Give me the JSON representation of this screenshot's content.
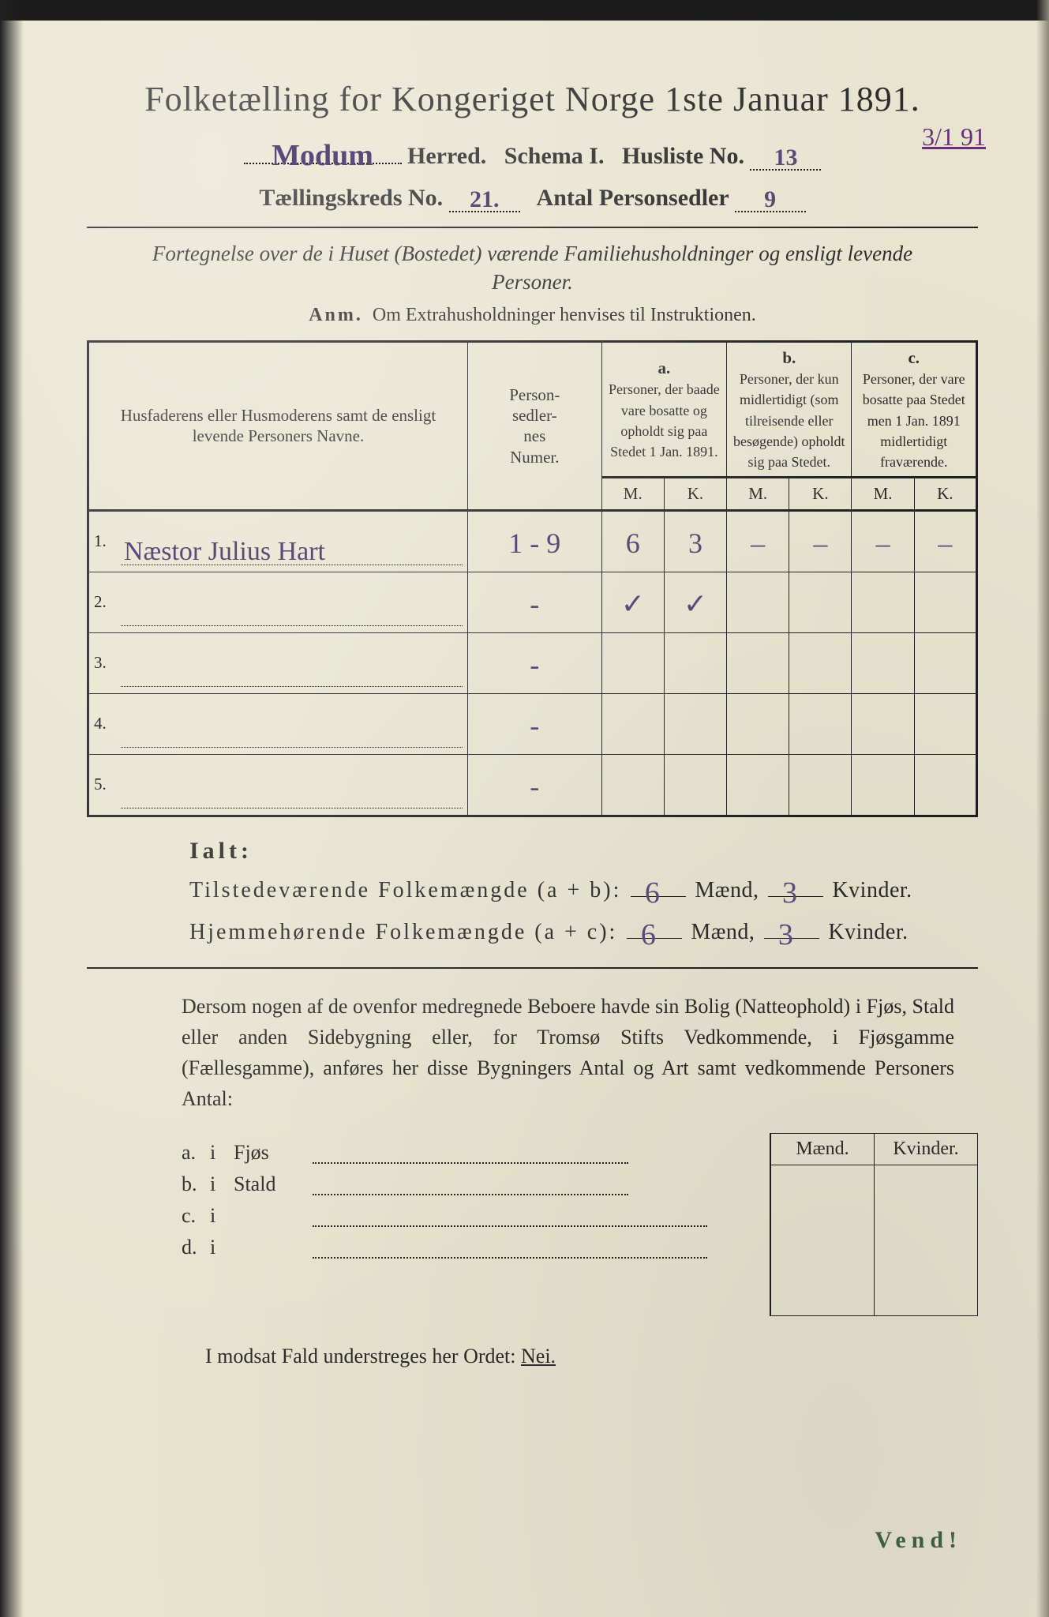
{
  "title": "Folketælling for Kongeriget Norge 1ste Januar 1891.",
  "header": {
    "herred_value": "Modum",
    "herred_label": "Herred.",
    "schema_label": "Schema I.",
    "husliste_label": "Husliste No.",
    "husliste_value": "13",
    "margin_note": "3/1 91",
    "kreds_label": "Tællingskreds No.",
    "kreds_value": "21.",
    "antal_label": "Antal Personsedler",
    "antal_value": "9"
  },
  "intro": "Fortegnelse over de i Huset (Bostedet) værende Familiehusholdninger og ensligt levende Personer.",
  "anm_lead": "Anm.",
  "anm_text": "Om Extrahusholdninger henvises til Instruktionen.",
  "table": {
    "head_name": "Husfaderens eller Husmoderens samt de ensligt levende Personers Navne.",
    "head_numer": "Person-\nsedler-\nnes\nNumer.",
    "col_a_label": "a.",
    "col_a_text": "Personer, der baade vare bosatte og opholdt sig paa Stedet 1 Jan. 1891.",
    "col_b_label": "b.",
    "col_b_text": "Personer, der kun midlertidigt (som tilreisende eller besøgende) opholdt sig paa Stedet.",
    "col_c_label": "c.",
    "col_c_text": "Personer, der vare bosatte paa Stedet men 1 Jan. 1891 midlertidigt fraværende.",
    "M": "M.",
    "K": "K.",
    "rows": [
      {
        "n": "1.",
        "name": "Næstor Julius Hart",
        "numer": "1 - 9",
        "aM": "6",
        "aK": "3",
        "bM": "–",
        "bK": "–",
        "cM": "–",
        "cK": "–"
      },
      {
        "n": "2.",
        "name": "",
        "numer": "-",
        "aM": "✓",
        "aK": "✓",
        "bM": "",
        "bK": "",
        "cM": "",
        "cK": ""
      },
      {
        "n": "3.",
        "name": "",
        "numer": "-",
        "aM": "",
        "aK": "",
        "bM": "",
        "bK": "",
        "cM": "",
        "cK": ""
      },
      {
        "n": "4.",
        "name": "",
        "numer": "-",
        "aM": "",
        "aK": "",
        "bM": "",
        "bK": "",
        "cM": "",
        "cK": ""
      },
      {
        "n": "5.",
        "name": "",
        "numer": "-",
        "aM": "",
        "aK": "",
        "bM": "",
        "bK": "",
        "cM": "",
        "cK": ""
      }
    ]
  },
  "ialt": {
    "lead": "Ialt:",
    "line1_a": "Tilstedeværende Folkemængde (a + b):",
    "line1_m": "6",
    "line1_k": "3",
    "line2_a": "Hjemmehørende Folkemængde (a + c):",
    "line2_m": "6",
    "line2_k": "3",
    "maend": "Mænd,",
    "kvinder": "Kvinder."
  },
  "para": "Dersom nogen af de ovenfor medregnede Beboere havde sin Bolig (Natteophold) i Fjøs, Stald eller anden Sidebygning eller, for Tromsø Stifts Vedkommende, i Fjøsgamme (Fællesgamme), anføres her disse Bygningers Antal og Art samt vedkommende Personers Antal:",
  "lower": {
    "hdr_m": "Mænd.",
    "hdr_k": "Kvinder.",
    "rows": [
      {
        "l": "a.",
        "i": "i",
        "n": "Fjøs"
      },
      {
        "l": "b.",
        "i": "i",
        "n": "Stald"
      },
      {
        "l": "c.",
        "i": "i",
        "n": ""
      },
      {
        "l": "d.",
        "i": "i",
        "n": ""
      }
    ]
  },
  "nei": {
    "text": "I modsat Fald understreges her Ordet:",
    "w": "Nei."
  },
  "vend": "Vend!"
}
